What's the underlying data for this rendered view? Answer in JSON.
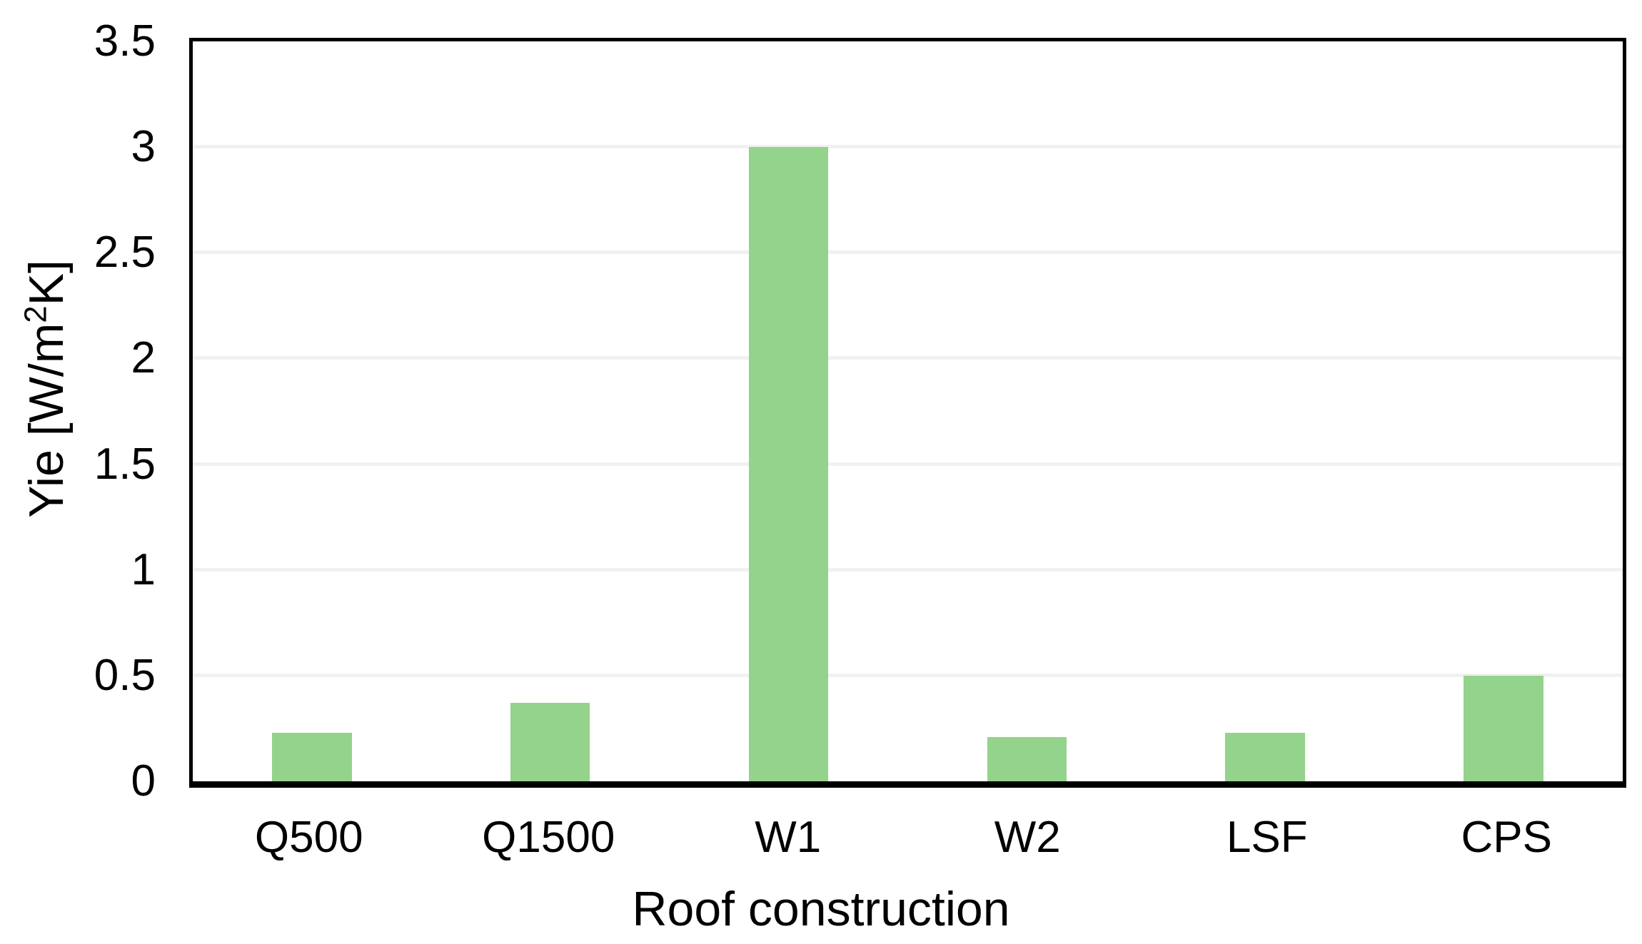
{
  "chart_data": {
    "type": "bar",
    "categories": [
      "Q500",
      "Q1500",
      "W1",
      "W2",
      "LSF",
      "CPS"
    ],
    "values": [
      0.23,
      0.37,
      3.0,
      0.21,
      0.23,
      0.5
    ],
    "series_name": "Yie",
    "title": "",
    "xlabel": "Roof construction",
    "ylabel": "Yie [W/m²K]",
    "ylabel_parts": {
      "pre": "Yie [W/m",
      "sup": "2",
      "post": "K]"
    },
    "ylim": [
      0,
      3.5
    ],
    "ytick_step": 0.5,
    "yticks": [
      {
        "value": 0,
        "label": "0"
      },
      {
        "value": 0.5,
        "label": "0.5"
      },
      {
        "value": 1,
        "label": "1"
      },
      {
        "value": 1.5,
        "label": "1.5"
      },
      {
        "value": 2,
        "label": "2"
      },
      {
        "value": 2.5,
        "label": "2.5"
      },
      {
        "value": 3,
        "label": "3"
      },
      {
        "value": 3.5,
        "label": "3.5"
      }
    ],
    "grid": "horizontal",
    "legend_position": "none",
    "colors": {
      "bar_fill": "#93D38B",
      "gridline": "#F1F1F1",
      "axis": "#000000",
      "background": "#FFFFFF",
      "text": "#000000"
    }
  }
}
